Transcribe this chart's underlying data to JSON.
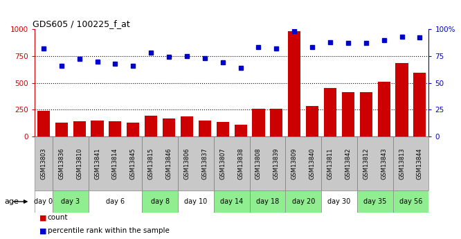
{
  "title": "GDS605 / 100225_f_at",
  "samples": [
    "GSM13803",
    "GSM13836",
    "GSM13810",
    "GSM13841",
    "GSM13814",
    "GSM13845",
    "GSM13815",
    "GSM13846",
    "GSM13806",
    "GSM13837",
    "GSM13807",
    "GSM13838",
    "GSM13808",
    "GSM13839",
    "GSM13809",
    "GSM13840",
    "GSM13811",
    "GSM13842",
    "GSM13812",
    "GSM13843",
    "GSM13813",
    "GSM13844"
  ],
  "counts": [
    240,
    130,
    145,
    148,
    145,
    127,
    195,
    168,
    185,
    148,
    135,
    110,
    260,
    255,
    980,
    285,
    450,
    415,
    415,
    510,
    685,
    595
  ],
  "percentiles": [
    82,
    66,
    72,
    70,
    68,
    66,
    78,
    74,
    75,
    73,
    69,
    64,
    83,
    82,
    98,
    83,
    88,
    87,
    87,
    90,
    93,
    92
  ],
  "day_groups": {
    "day 0": [
      "GSM13803"
    ],
    "day 3": [
      "GSM13836",
      "GSM13810"
    ],
    "day 6": [
      "GSM13841",
      "GSM13814",
      "GSM13845"
    ],
    "day 8": [
      "GSM13815",
      "GSM13846"
    ],
    "day 10": [
      "GSM13806",
      "GSM13837"
    ],
    "day 14": [
      "GSM13807",
      "GSM13838"
    ],
    "day 18": [
      "GSM13808",
      "GSM13839"
    ],
    "day 20": [
      "GSM13809",
      "GSM13840"
    ],
    "day 30": [
      "GSM13811",
      "GSM13842"
    ],
    "day 35": [
      "GSM13812",
      "GSM13843"
    ],
    "day 56": [
      "GSM13813",
      "GSM13844"
    ]
  },
  "day_colors": [
    "#ffffff",
    "#90ee90",
    "#ffffff",
    "#90ee90",
    "#ffffff",
    "#90ee90",
    "#90ee90",
    "#90ee90",
    "#ffffff",
    "#90ee90",
    "#90ee90"
  ],
  "bar_color": "#cc0000",
  "dot_color": "#0000cc",
  "left_axis_color": "#cc0000",
  "right_axis_color": "#0000cc",
  "ylim_left": [
    0,
    1000
  ],
  "ylim_right": [
    0,
    100
  ],
  "yticks_left": [
    0,
    250,
    500,
    750,
    1000
  ],
  "yticks_right": [
    0,
    25,
    50,
    75,
    100
  ],
  "background_gsm": "#c8c8c8",
  "age_label": "age",
  "legend_count": "count",
  "legend_percentile": "percentile rank within the sample"
}
